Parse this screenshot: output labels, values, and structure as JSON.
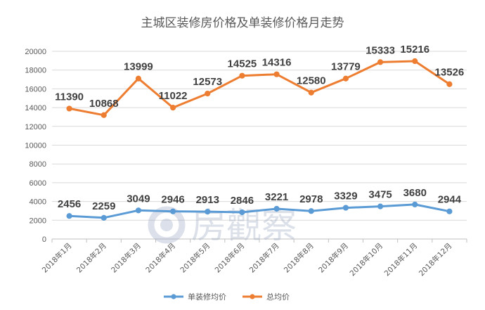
{
  "chart_data": {
    "type": "line",
    "title": "主城区装修房价格及单装修价格月走势",
    "categories": [
      "2018年1月",
      "2018年2月",
      "2018年3月",
      "2018年4月",
      "2018年5月",
      "2018年6月",
      "2018年7月",
      "2018年8月",
      "2018年9月",
      "2018年10月",
      "2018年11月",
      "2018年12月"
    ],
    "ylim": [
      0,
      20000
    ],
    "yticks": [
      0,
      2000,
      4000,
      6000,
      8000,
      10000,
      12000,
      14000,
      16000,
      18000,
      20000
    ],
    "grid": true,
    "legend_position": "bottom",
    "series": [
      {
        "name": "单装修均价",
        "color": "#5b9bd5",
        "values": [
          2456,
          2259,
          3049,
          2946,
          2913,
          2846,
          3221,
          2978,
          3329,
          3475,
          3680,
          2944
        ],
        "labels": [
          "2456",
          "2259",
          "3049",
          "2946",
          "2913",
          "2846",
          "3221",
          "2978",
          "3329",
          "3475",
          "3680",
          "2944"
        ]
      },
      {
        "name": "总均价",
        "color": "#ed7d31",
        "values": [
          13900,
          13200,
          17100,
          14000,
          15500,
          17400,
          17550,
          15600,
          17100,
          18850,
          18950,
          16500
        ],
        "labels": [
          "11390",
          "10868",
          "13999",
          "11022",
          "12573",
          "14525",
          "14316",
          "12580",
          "13779",
          "15333",
          "15216",
          "13526"
        ]
      }
    ]
  },
  "watermark": {
    "text": "房觀察",
    "color": "#9aa7c2"
  }
}
